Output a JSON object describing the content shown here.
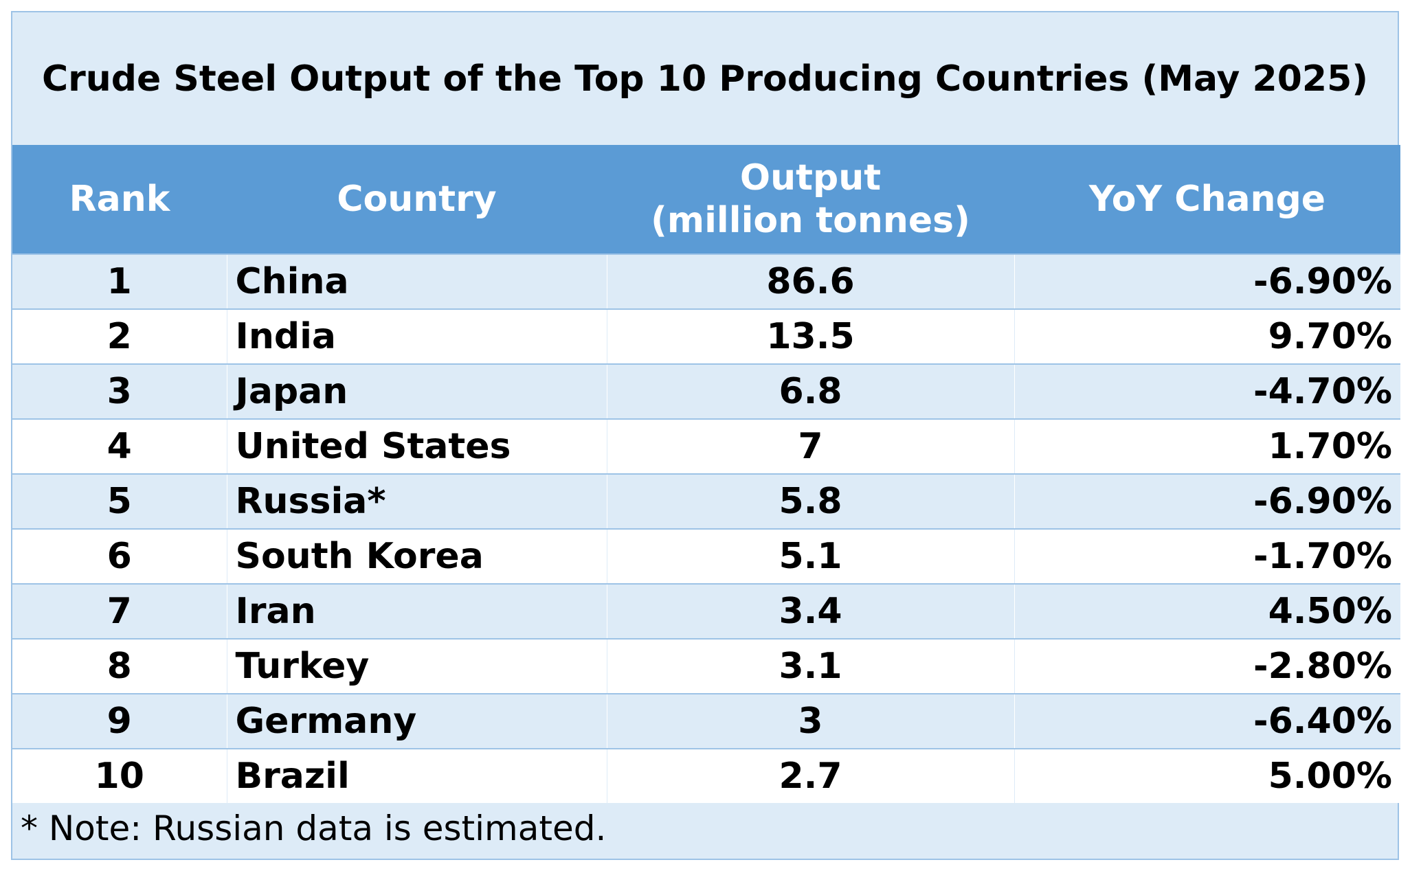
{
  "chart_data": {
    "type": "table",
    "title": "Crude Steel Output of the Top 10 Producing Countries (May 2025)",
    "columns": [
      "Rank",
      "Country",
      "Output",
      "YoY Change"
    ],
    "output_header_unit": "(million tonnes)",
    "rows": [
      {
        "rank": "1",
        "country": "China",
        "output": "86.6",
        "yoy": "-6.90%"
      },
      {
        "rank": "2",
        "country": "India",
        "output": "13.5",
        "yoy": "9.70%"
      },
      {
        "rank": "3",
        "country": "Japan",
        "output": "6.8",
        "yoy": "-4.70%"
      },
      {
        "rank": "4",
        "country": "United States",
        "output": "7",
        "yoy": "1.70%"
      },
      {
        "rank": "5",
        "country": "Russia*",
        "output": "5.8",
        "yoy": "-6.90%"
      },
      {
        "rank": "6",
        "country": "South Korea",
        "output": "5.1",
        "yoy": "-1.70%"
      },
      {
        "rank": "7",
        "country": "Iran",
        "output": "3.4",
        "yoy": "4.50%"
      },
      {
        "rank": "8",
        "country": "Turkey",
        "output": "3.1",
        "yoy": "-2.80%"
      },
      {
        "rank": "9",
        "country": "Germany",
        "output": "3",
        "yoy": "-6.40%"
      },
      {
        "rank": "10",
        "country": "Brazil",
        "output": "2.7",
        "yoy": "5.00%"
      }
    ],
    "note": "* Note: Russian data is estimated."
  },
  "colors": {
    "header_bg": "#5b9bd5",
    "band_bg": "#ddebf7",
    "white_bg": "#ffffff",
    "border": "#9dc3e6"
  }
}
